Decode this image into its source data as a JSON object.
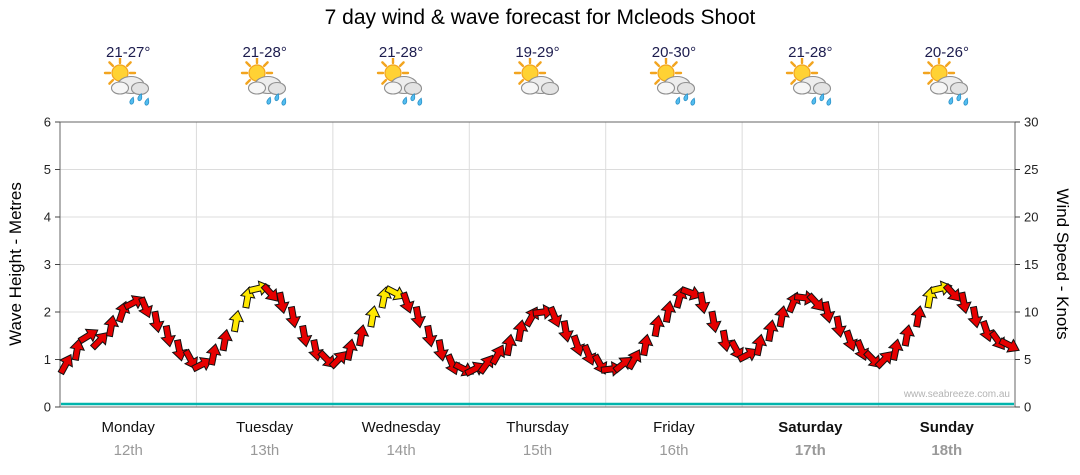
{
  "title": "7 day wind & wave forecast for Mcleods Shoot",
  "watermark": "www.seabreeze.com.au",
  "axes": {
    "left_label": "Wave Height - Metres",
    "right_label": "Wind Speed - Knots",
    "left_ticks": [
      0,
      1,
      2,
      3,
      4,
      5,
      6
    ],
    "right_ticks": [
      0,
      5,
      10,
      15,
      20,
      25,
      30
    ]
  },
  "days": [
    {
      "name": "Monday",
      "date": "12th",
      "temp": "21-27°",
      "icon": "sun-cloud-rain",
      "weekend": false
    },
    {
      "name": "Tuesday",
      "date": "13th",
      "temp": "21-28°",
      "icon": "sun-cloud-rain",
      "weekend": false
    },
    {
      "name": "Wednesday",
      "date": "14th",
      "temp": "21-28°",
      "icon": "sun-cloud-rain",
      "weekend": false
    },
    {
      "name": "Thursday",
      "date": "15th",
      "temp": "19-29°",
      "icon": "sun-cloud",
      "weekend": false
    },
    {
      "name": "Friday",
      "date": "16th",
      "temp": "20-30°",
      "icon": "sun-cloud-rain",
      "weekend": false
    },
    {
      "name": "Saturday",
      "date": "17th",
      "temp": "21-28°",
      "icon": "sun-cloud-rain",
      "weekend": true
    },
    {
      "name": "Sunday",
      "date": "18th",
      "temp": "20-26°",
      "icon": "sun-cloud-rain",
      "weekend": true
    }
  ],
  "chart_data": {
    "type": "wind-arrows",
    "title": "7 day wind & wave forecast for Mcleods Shoot",
    "xlabel": "",
    "x_unit": "2-hour intervals, 12 per day",
    "ylabel_left": "Wave Height - Metres",
    "ylabel_right": "Wind Speed - Knots",
    "ylim_left": [
      0,
      6
    ],
    "ylim_right": [
      0,
      30
    ],
    "grid": true,
    "wave_height_series_m": {
      "style": "flat-line",
      "value_m": 0.1,
      "color": "#00b4ac"
    },
    "wind_arrow_colors": {
      "r": "#e60000",
      "y": "#ffe800"
    },
    "days": [
      {
        "day": "Monday 12th",
        "knots": [
          4.5,
          6,
          7.5,
          7,
          8.5,
          10,
          11,
          10.5,
          9,
          7.5,
          6,
          5
        ],
        "colors": "rrrrrrrrrrrr"
      },
      {
        "day": "Tuesday 13th",
        "knots": [
          4.5,
          5.5,
          7,
          9,
          11.5,
          12.5,
          12,
          11,
          9.5,
          7.5,
          6,
          5
        ],
        "colors": "rrryyyrrrrrr"
      },
      {
        "day": "Wednesday 14th",
        "knots": [
          5,
          6,
          7.5,
          9.5,
          11.5,
          12,
          11,
          9.5,
          7.5,
          6,
          4.5,
          4
        ],
        "colors": "rrryyyrrrrrr"
      },
      {
        "day": "Thursday 15th",
        "knots": [
          4,
          4.5,
          5.5,
          6.5,
          8,
          9.5,
          10,
          9.5,
          8,
          6.5,
          5.5,
          4.5
        ],
        "colors": "rrrrrrrrrrrr"
      },
      {
        "day": "Friday 16th",
        "knots": [
          4,
          4.5,
          5,
          6.5,
          8.5,
          10,
          11.5,
          12,
          11,
          9,
          7,
          6
        ],
        "colors": "rrrrrrrrrrrr"
      },
      {
        "day": "Saturday 17th",
        "knots": [
          5.5,
          6.5,
          8,
          9.5,
          11,
          11.5,
          11,
          10,
          8.5,
          7,
          6,
          5
        ],
        "colors": "rrrrrrrrrrrr"
      },
      {
        "day": "Sunday 18th",
        "knots": [
          5,
          6,
          7.5,
          9.5,
          11.5,
          12.5,
          12,
          11,
          9.5,
          8,
          7,
          6.5
        ],
        "colors": "rrrryyrrrrrr"
      }
    ]
  }
}
